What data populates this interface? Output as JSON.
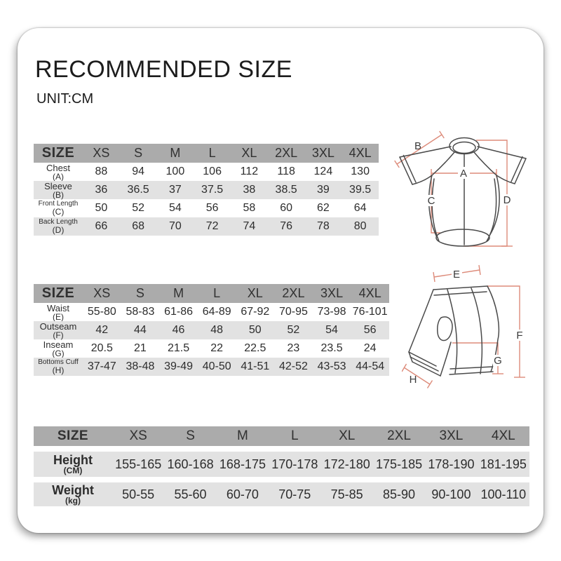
{
  "page": {
    "title": "RECOMMENDED SIZE",
    "unit": "UNIT:CM"
  },
  "colors": {
    "header_row": "#ababab",
    "stripe_row": "#e2e2e2",
    "measure_line": "#dd8b7a",
    "garment_outline": "#4a4a4a",
    "text": "#2d2d2d"
  },
  "sizes": [
    "XS",
    "S",
    "M",
    "L",
    "XL",
    "2XL",
    "3XL",
    "4XL"
  ],
  "jersey_table": {
    "corner": "SIZE",
    "rows": [
      {
        "label": "Chest",
        "sub": "(A)",
        "values": [
          "88",
          "94",
          "100",
          "106",
          "112",
          "118",
          "124",
          "130"
        ]
      },
      {
        "label": "Sleeve",
        "sub": "(B)",
        "values": [
          "36",
          "36.5",
          "37",
          "37.5",
          "38",
          "38.5",
          "39",
          "39.5"
        ]
      },
      {
        "label": "Front Length",
        "sub": "(C)",
        "values": [
          "50",
          "52",
          "54",
          "56",
          "58",
          "60",
          "62",
          "64"
        ]
      },
      {
        "label": "Back Length",
        "sub": "(D)",
        "values": [
          "66",
          "68",
          "70",
          "72",
          "74",
          "76",
          "78",
          "80"
        ]
      }
    ]
  },
  "shorts_table": {
    "corner": "SIZE",
    "rows": [
      {
        "label": "Waist",
        "sub": "(E)",
        "values": [
          "55-80",
          "58-83",
          "61-86",
          "64-89",
          "67-92",
          "70-95",
          "73-98",
          "76-101"
        ]
      },
      {
        "label": "Outseam",
        "sub": "(F)",
        "values": [
          "42",
          "44",
          "46",
          "48",
          "50",
          "52",
          "54",
          "56"
        ]
      },
      {
        "label": "Inseam",
        "sub": "(G)",
        "values": [
          "20.5",
          "21",
          "21.5",
          "22",
          "22.5",
          "23",
          "23.5",
          "24"
        ]
      },
      {
        "label": "Bottoms Cuff",
        "sub": "(H)",
        "values": [
          "37-47",
          "38-48",
          "39-49",
          "40-50",
          "41-51",
          "42-52",
          "43-53",
          "44-54"
        ]
      }
    ]
  },
  "body_table": {
    "corner": "SIZE",
    "rows": [
      {
        "label": "Height",
        "sub": "(CM)",
        "values": [
          "155-165",
          "160-168",
          "168-175",
          "170-178",
          "172-180",
          "175-185",
          "178-190",
          "181-195"
        ]
      },
      {
        "label": "Weight",
        "sub": "(kg)",
        "values": [
          "50-55",
          "55-60",
          "60-70",
          "70-75",
          "75-85",
          "85-90",
          "90-100",
          "100-110"
        ]
      }
    ]
  },
  "diagrams": {
    "jersey": {
      "labels": {
        "a": "A",
        "b": "B",
        "c": "C",
        "d": "D"
      }
    },
    "shorts": {
      "labels": {
        "e": "E",
        "f": "F",
        "g": "G",
        "h": "H"
      }
    }
  }
}
